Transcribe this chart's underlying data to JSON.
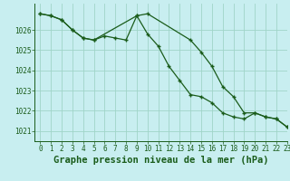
{
  "title": "Graphe pression niveau de la mer (hPa)",
  "background_color": "#c8eef0",
  "grid_color": "#a0d4c8",
  "line_color": "#1a5c1a",
  "xlim": [
    -0.5,
    23
  ],
  "ylim": [
    1020.5,
    1027.3
  ],
  "yticks": [
    1021,
    1022,
    1023,
    1024,
    1025,
    1026
  ],
  "xticks": [
    0,
    1,
    2,
    3,
    4,
    5,
    6,
    7,
    8,
    9,
    10,
    11,
    12,
    13,
    14,
    15,
    16,
    17,
    18,
    19,
    20,
    21,
    22,
    23
  ],
  "series1_x": [
    0,
    1,
    2,
    3,
    4,
    5,
    6,
    7,
    8,
    9,
    10,
    11,
    12,
    13,
    14,
    15,
    16,
    17,
    18,
    19,
    20,
    21,
    22,
    23
  ],
  "series1_y": [
    1026.8,
    1026.7,
    1026.5,
    1026.0,
    1025.6,
    1025.5,
    1025.7,
    1025.6,
    1025.5,
    1026.7,
    1025.8,
    1025.2,
    1024.2,
    1023.5,
    1022.8,
    1022.7,
    1022.4,
    1021.9,
    1021.7,
    1021.6,
    1021.9,
    1021.7,
    1021.6,
    1021.2
  ],
  "series2_x": [
    0,
    1,
    2,
    3,
    4,
    5,
    9,
    10,
    14,
    15,
    16,
    17,
    18,
    19,
    20,
    21,
    22,
    23
  ],
  "series2_y": [
    1026.8,
    1026.7,
    1026.5,
    1026.0,
    1025.6,
    1025.5,
    1026.7,
    1026.8,
    1025.5,
    1024.9,
    1024.2,
    1023.2,
    1022.7,
    1021.9,
    1021.9,
    1021.7,
    1021.6,
    1021.2
  ],
  "title_fontsize": 7.5,
  "tick_fontsize": 5.5,
  "figwidth": 3.2,
  "figheight": 2.0,
  "dpi": 100
}
